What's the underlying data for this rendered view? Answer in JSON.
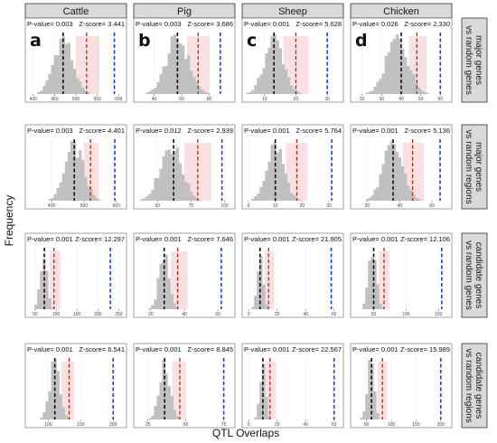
{
  "figure": {
    "y_axis_title": "Frequency",
    "x_axis_title": "QTL Overlaps",
    "colors": {
      "bars": "#c0c0c0",
      "strip_bg": "#d9d9d9",
      "observed_line": "#1f3fd6",
      "upper_line": "#b02a10",
      "mean_line": "#111111",
      "shade": "#f4c9cc"
    }
  },
  "chart_data": {
    "type": "histogram-grid",
    "columns": [
      "Cattle",
      "Pig",
      "Sheep",
      "Chicken"
    ],
    "rows": [
      [
        "major genes",
        "vs random genes"
      ],
      [
        "major genes",
        "vs random regions"
      ],
      [
        "candidate genes",
        "vs random genes"
      ],
      [
        "candidate genes",
        "vs random regions"
      ]
    ],
    "panel_letters": [
      "a",
      "b",
      "c",
      "d"
    ],
    "panels": [
      [
        {
          "p": "0.003",
          "z": "3.441",
          "ticks": [
            400,
            450,
            500,
            550,
            600
          ],
          "xlim": [
            390,
            610
          ],
          "mean": 470,
          "upper": 525,
          "observed": 590,
          "shade": [
            500,
            555
          ],
          "peak": 470,
          "sd": 22
        },
        {
          "p": "0.003",
          "z": "3.686",
          "ticks": [
            40,
            60,
            80
          ],
          "xlim": [
            28,
            96
          ],
          "mean": 57,
          "upper": 72,
          "observed": 88,
          "shade": [
            64,
            80
          ],
          "peak": 57,
          "sd": 8
        },
        {
          "p": "0.001",
          "z": "5.628",
          "ticks": [
            10,
            20,
            30
          ],
          "xlim": [
            4,
            34
          ],
          "mean": 13,
          "upper": 20,
          "observed": 30,
          "shade": [
            16,
            24
          ],
          "peak": 13,
          "sd": 3
        },
        {
          "p": "0.026",
          "z": "2.330",
          "ticks": [
            20,
            30,
            40,
            50,
            60
          ],
          "xlim": [
            16,
            64
          ],
          "mean": 40,
          "upper": 48,
          "observed": 60,
          "shade": [
            44,
            53
          ],
          "peak": 38,
          "sd": 5.5
        }
      ],
      [
        {
          "p": "0.003",
          "z": "4.401",
          "ticks": [
            400,
            500,
            600
          ],
          "xlim": [
            330,
            620
          ],
          "mean": 470,
          "upper": 520,
          "observed": 595,
          "shade": [
            500,
            545
          ],
          "peak": 470,
          "sd": 28
        },
        {
          "p": "0.012",
          "z": "2.939",
          "ticks": [
            50,
            75,
            100
          ],
          "xlim": [
            35,
            105
          ],
          "mean": 62,
          "upper": 80,
          "observed": 98,
          "shade": [
            70,
            90
          ],
          "peak": 60,
          "sd": 8
        },
        {
          "p": "0.001",
          "z": "5.764",
          "ticks": [
            0,
            10,
            20,
            30
          ],
          "xlim": [
            -1,
            34
          ],
          "mean": 10,
          "upper": 18,
          "observed": 31,
          "shade": [
            14,
            22
          ],
          "peak": 10,
          "sd": 3.2
        },
        {
          "p": "0.001",
          "z": "5.136",
          "ticks": [
            20,
            40,
            60
          ],
          "xlim": [
            12,
            70
          ],
          "mean": 36,
          "upper": 48,
          "observed": 65,
          "shade": [
            42,
            55
          ],
          "peak": 36,
          "sd": 6
        }
      ],
      [
        {
          "p": "0.001",
          "z": "12.297",
          "ticks": [
            50,
            100,
            150,
            200,
            250
          ],
          "xlim": [
            35,
            260
          ],
          "mean": 72,
          "upper": 95,
          "observed": 230,
          "shade": [
            85,
            110
          ],
          "peak": 70,
          "sd": 8
        },
        {
          "p": "0.001",
          "z": "7.646",
          "ticks": [
            20,
            40,
            60
          ],
          "xlim": [
            12,
            68
          ],
          "mean": 28,
          "upper": 36,
          "observed": 62,
          "shade": [
            32,
            42
          ],
          "peak": 28,
          "sd": 3
        },
        {
          "p": "0.001",
          "z": "21.905",
          "ticks": [
            0,
            20,
            40,
            60
          ],
          "xlim": [
            -2,
            64
          ],
          "mean": 8,
          "upper": 14,
          "observed": 58,
          "shade": [
            11,
            18
          ],
          "peak": 8,
          "sd": 2
        },
        {
          "p": "0.001",
          "z": "12.106",
          "ticks": [
            50,
            100,
            150
          ],
          "xlim": [
            20,
            165
          ],
          "mean": 50,
          "upper": 66,
          "observed": 155,
          "shade": [
            58,
            74
          ],
          "peak": 48,
          "sd": 6
        }
      ],
      [
        {
          "p": "0.001",
          "z": "6.541",
          "ticks": [
            100,
            150,
            200
          ],
          "xlim": [
            70,
            215
          ],
          "mean": 110,
          "upper": 132,
          "observed": 200,
          "shade": [
            120,
            140
          ],
          "peak": 110,
          "sd": 8
        },
        {
          "p": "0.001",
          "z": "8.845",
          "ticks": [
            25,
            50,
            75
          ],
          "xlim": [
            18,
            80
          ],
          "mean": 36,
          "upper": 46,
          "observed": 75,
          "shade": [
            41,
            50
          ],
          "peak": 36,
          "sd": 3.5
        },
        {
          "p": "0.001",
          "z": "22.567",
          "ticks": [
            0,
            20,
            40,
            60
          ],
          "xlim": [
            -2,
            64
          ],
          "mean": 10,
          "upper": 15,
          "observed": 60,
          "shade": [
            12,
            19
          ],
          "peak": 10,
          "sd": 2
        },
        {
          "p": "0.001",
          "z": "15.989",
          "ticks": [
            50,
            100,
            150,
            200
          ],
          "xlim": [
            25,
            215
          ],
          "mean": 60,
          "upper": 82,
          "observed": 200,
          "shade": [
            72,
            92
          ],
          "peak": 58,
          "sd": 7
        }
      ]
    ]
  }
}
